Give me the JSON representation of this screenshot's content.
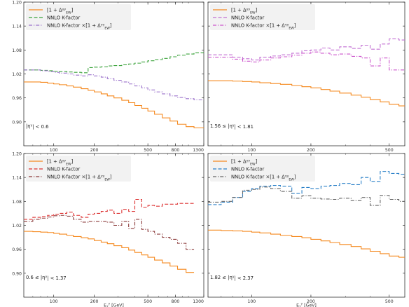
{
  "figure": {
    "units_label": "[GeV]"
  },
  "chart_data": [
    {
      "type": "line",
      "panel": "top-left",
      "xscale": "log",
      "xlim": [
        60,
        1300
      ],
      "ylim": [
        0.84,
        1.2
      ],
      "yticks": [
        0.9,
        0.96,
        1.02,
        1.08,
        1.14,
        1.2
      ],
      "ytick_labels": [
        "0.90",
        "0.96",
        "1.02",
        "1.08",
        "1.14",
        "1.20"
      ],
      "xticks": [
        100,
        200,
        500,
        800,
        1300
      ],
      "xtick_labels": [
        "100",
        "200",
        "500",
        "800",
        "1300"
      ],
      "xlabel": "",
      "annotation": "|η^γ| < 0.6",
      "legend": "top-left",
      "edges": [
        60,
        70,
        80,
        90,
        100,
        110,
        125,
        140,
        160,
        180,
        200,
        225,
        250,
        280,
        320,
        360,
        400,
        450,
        500,
        560,
        640,
        730,
        830,
        960,
        1100,
        1300
      ],
      "series": [
        {
          "name": "[1 + Δ^γγ_EW]",
          "color": "#f5891f",
          "dash": "solid",
          "values": [
            1.0,
            1.0,
            0.999,
            0.997,
            0.995,
            0.993,
            0.99,
            0.987,
            0.983,
            0.979,
            0.975,
            0.97,
            0.965,
            0.96,
            0.954,
            0.948,
            0.941,
            0.934,
            0.927,
            0.919,
            0.91,
            0.902,
            0.894,
            0.888,
            0.885
          ]
        },
        {
          "name": "NNLO K-factor",
          "color": "#3aa23a",
          "dash": "dashed",
          "values": [
            1.03,
            1.03,
            1.029,
            1.028,
            1.027,
            1.026,
            1.025,
            1.024,
            1.023,
            1.036,
            1.037,
            1.038,
            1.04,
            1.041,
            1.043,
            1.045,
            1.047,
            1.05,
            1.053,
            1.056,
            1.059,
            1.063,
            1.067,
            1.07,
            1.073
          ]
        },
        {
          "name": "NNLO K-factor ×[1 + Δ^γγ_EW]",
          "color": "#9b72cb",
          "dash": "dashdot",
          "values": [
            1.03,
            1.03,
            1.028,
            1.026,
            1.024,
            1.022,
            1.02,
            1.017,
            1.015,
            1.018,
            1.015,
            1.012,
            1.008,
            1.004,
            1.0,
            0.995,
            0.99,
            0.985,
            0.98,
            0.975,
            0.97,
            0.965,
            0.961,
            0.958,
            0.955
          ]
        }
      ]
    },
    {
      "type": "line",
      "panel": "top-right",
      "xscale": "log",
      "xlim": [
        60,
        600
      ],
      "ylim": [
        0.84,
        1.2
      ],
      "yticks": [
        0.9,
        0.96,
        1.02,
        1.08,
        1.14,
        1.2
      ],
      "ytick_labels": [],
      "xticks": [
        100,
        200,
        500
      ],
      "xtick_labels": [
        "100",
        "200",
        "500"
      ],
      "xlabel": "",
      "annotation": "1.56 ≤ |η^γ| < 1.81",
      "legend": "top-left",
      "edges": [
        60,
        70,
        80,
        90,
        100,
        110,
        125,
        140,
        160,
        180,
        200,
        225,
        250,
        280,
        320,
        360,
        400,
        450,
        500,
        560,
        600
      ],
      "series": [
        {
          "name": "[1 + Δ^γγ_EW]",
          "color": "#f5891f",
          "dash": "solid",
          "values": [
            1.003,
            1.003,
            1.002,
            1.001,
            1.0,
            0.998,
            0.996,
            0.994,
            0.991,
            0.988,
            0.985,
            0.981,
            0.977,
            0.972,
            0.967,
            0.962,
            0.956,
            0.95,
            0.944,
            0.94
          ]
        },
        {
          "name": "NNLO K-factor",
          "color": "#c26fd3",
          "dash": "dashed",
          "values": [
            1.068,
            1.068,
            1.062,
            1.058,
            1.055,
            1.062,
            1.065,
            1.068,
            1.072,
            1.078,
            1.08,
            1.085,
            1.08,
            1.088,
            1.084,
            1.092,
            1.082,
            1.095,
            1.108,
            1.105
          ]
        },
        {
          "name": "NNLO K-factor ×[1 + Δ^γγ_EW]",
          "color": "#cc55cc",
          "dash": "dashdot",
          "values": [
            1.062,
            1.062,
            1.057,
            1.052,
            1.05,
            1.055,
            1.06,
            1.063,
            1.067,
            1.072,
            1.075,
            1.072,
            1.068,
            1.07,
            1.064,
            1.06,
            1.04,
            1.06,
            1.03,
            1.03
          ]
        }
      ]
    },
    {
      "type": "line",
      "panel": "bottom-left",
      "xscale": "log",
      "xlim": [
        60,
        1300
      ],
      "ylim": [
        0.84,
        1.2
      ],
      "yticks": [
        0.9,
        0.96,
        1.02,
        1.08,
        1.14,
        1.2
      ],
      "ytick_labels": [
        "0.90",
        "0.96",
        "1.02",
        "1.08",
        "1.14",
        "1.20"
      ],
      "xticks": [
        100,
        200,
        500,
        800,
        1300
      ],
      "xtick_labels": [
        "100",
        "200",
        "500",
        "800",
        "1300"
      ],
      "xlabel": "E_T^γ [GeV]",
      "annotation": "0.6 ≤ |η^γ| < 1.37",
      "legend": "top-left",
      "edges": [
        60,
        70,
        80,
        90,
        100,
        110,
        125,
        140,
        160,
        180,
        200,
        225,
        250,
        280,
        320,
        360,
        400,
        450,
        500,
        560,
        640,
        730,
        830,
        960,
        1100
      ],
      "series": [
        {
          "name": "[1 + Δ^γγ_EW]",
          "color": "#f5891f",
          "dash": "solid",
          "values": [
            1.005,
            1.004,
            1.003,
            1.002,
            1.0,
            0.998,
            0.995,
            0.992,
            0.989,
            0.986,
            0.982,
            0.978,
            0.974,
            0.969,
            0.964,
            0.958,
            0.952,
            0.946,
            0.94,
            0.933,
            0.926,
            0.918,
            0.91,
            0.902
          ]
        },
        {
          "name": "NNLO K-factor",
          "color": "#dd3333",
          "dash": "dashed",
          "values": [
            1.035,
            1.04,
            1.042,
            1.045,
            1.048,
            1.05,
            1.053,
            1.045,
            1.04,
            1.048,
            1.05,
            1.055,
            1.058,
            1.05,
            1.06,
            1.055,
            1.085,
            1.065,
            1.07,
            1.068,
            1.073,
            1.073,
            1.075,
            1.075
          ]
        },
        {
          "name": "NNLO K-factor ×[1 + Δ^γγ_EW]",
          "color": "#8b3a3a",
          "dash": "dashdot",
          "values": [
            1.03,
            1.035,
            1.038,
            1.041,
            1.044,
            1.045,
            1.043,
            1.035,
            1.028,
            1.03,
            1.03,
            1.03,
            1.028,
            1.02,
            1.03,
            1.012,
            1.035,
            1.01,
            1.005,
            0.998,
            0.99,
            0.985,
            0.975,
            0.96
          ]
        }
      ]
    },
    {
      "type": "line",
      "panel": "bottom-right",
      "xscale": "log",
      "xlim": [
        60,
        600
      ],
      "ylim": [
        0.84,
        1.2
      ],
      "yticks": [
        0.9,
        0.96,
        1.02,
        1.08,
        1.14,
        1.2
      ],
      "ytick_labels": [],
      "xticks": [
        100,
        200,
        500
      ],
      "xtick_labels": [
        "100",
        "200",
        "500"
      ],
      "xlabel": "E_T^γ [GeV]",
      "annotation": "1.82 ≤ |η^γ| < 2.37",
      "legend": "top-left",
      "edges": [
        60,
        70,
        80,
        90,
        100,
        110,
        125,
        140,
        160,
        180,
        200,
        225,
        250,
        280,
        320,
        360,
        400,
        450,
        500,
        560,
        600
      ],
      "series": [
        {
          "name": "[1 + Δ^γγ_EW]",
          "color": "#f5891f",
          "dash": "solid",
          "values": [
            1.008,
            1.007,
            1.006,
            1.005,
            1.003,
            1.001,
            0.998,
            0.995,
            0.992,
            0.989,
            0.985,
            0.981,
            0.977,
            0.972,
            0.967,
            0.961,
            0.955,
            0.949,
            0.943,
            0.94
          ]
        },
        {
          "name": "NNLO K-factor",
          "color": "#2a80c8",
          "dash": "dashed",
          "values": [
            1.072,
            1.078,
            1.09,
            1.105,
            1.112,
            1.118,
            1.12,
            1.118,
            1.1,
            1.115,
            1.112,
            1.118,
            1.12,
            1.125,
            1.122,
            1.14,
            1.13,
            1.155,
            1.15,
            1.148
          ]
        },
        {
          "name": "NNLO K-factor ×[1 + Δ^γγ_EW]",
          "color": "#666666",
          "dash": "dashdot",
          "values": [
            1.078,
            1.08,
            1.09,
            1.108,
            1.11,
            1.116,
            1.112,
            1.105,
            1.088,
            1.094,
            1.088,
            1.086,
            1.085,
            1.088,
            1.082,
            1.09,
            1.07,
            1.095,
            1.085,
            1.08
          ]
        }
      ]
    }
  ]
}
